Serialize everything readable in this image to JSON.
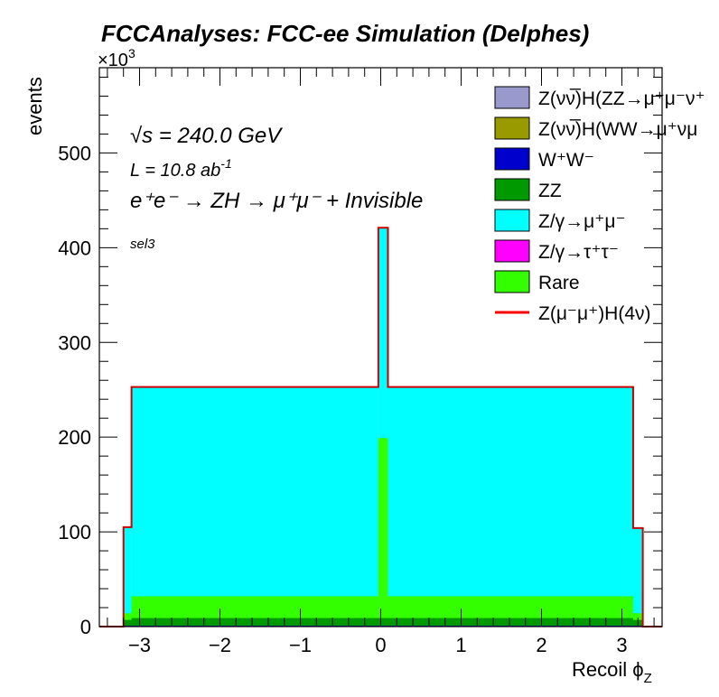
{
  "header": {
    "title": "FCCAnalyses: FCC-ee Simulation (Delphes)",
    "exponent_base": "×10",
    "exponent_power": "3"
  },
  "annotations": {
    "sqrt_s_symbol": "√s",
    "sqrt_s_value": " = 240.0 GeV",
    "lumi_prefix": "L = 10.8 ab",
    "lumi_power": "-1",
    "process": "e⁺e⁻ → ZH → μ⁺μ⁻ + Invisible",
    "selection": "sel3"
  },
  "chart_data": {
    "type": "area",
    "stacked": true,
    "xlabel": "Recoil ϕ",
    "xlabel_sub": "Z",
    "ylabel": "events",
    "y_unit_exponent": 3,
    "xlim": [
      -3.5,
      3.5
    ],
    "ylim": [
      0,
      590
    ],
    "x_ticks": [
      -3,
      -2,
      -1,
      0,
      1,
      2,
      3
    ],
    "x_tick_labels": [
      "−3",
      "−2",
      "−1",
      "0",
      "1",
      "2",
      "3"
    ],
    "y_ticks": [
      0,
      100,
      200,
      300,
      400,
      500
    ],
    "y_tick_labels": [
      "0",
      "100",
      "200",
      "300",
      "400",
      "500"
    ],
    "legend_position": "top-right",
    "legend": [
      {
        "label": "Z(νν̅)H(ZZ→μ⁺μ⁻ν⁺",
        "color": "#9999cc",
        "kind": "fill"
      },
      {
        "label": "Z(νν̅)H(WW→μ⁺νμ",
        "color": "#999900",
        "kind": "fill"
      },
      {
        "label": "W⁺W⁻",
        "color": "#0000cc",
        "kind": "fill"
      },
      {
        "label": "ZZ",
        "color": "#009900",
        "kind": "fill"
      },
      {
        "label": "Z/γ→μ⁺μ⁻",
        "color": "#00ffff",
        "kind": "fill"
      },
      {
        "label": "Z/γ→τ⁺τ⁻",
        "color": "#ff00ff",
        "kind": "fill"
      },
      {
        "label": "Rare",
        "color": "#33ff00",
        "kind": "fill"
      },
      {
        "label": "Z(μ⁻μ⁺)H(4ν)",
        "color": "#ff0000",
        "kind": "line"
      }
    ],
    "series_stack_bottom_to_top": [
      {
        "name": "Z/γ→μ⁺μ⁻",
        "color": "#00ffff",
        "bins": [
          {
            "x0": -3.2,
            "x1": -3.1,
            "top": 105
          },
          {
            "x0": -3.1,
            "x1": -0.03,
            "top": 253
          },
          {
            "x0": -0.03,
            "x1": 0.09,
            "top": 421
          },
          {
            "x0": 0.09,
            "x1": 3.14,
            "top": 253
          },
          {
            "x0": 3.14,
            "x1": 3.26,
            "top": 104
          }
        ]
      },
      {
        "name": "Rare",
        "color": "#33ff00",
        "bins": [
          {
            "x0": -3.2,
            "x1": -3.1,
            "top": 14
          },
          {
            "x0": -3.1,
            "x1": -0.03,
            "top": 32
          },
          {
            "x0": -0.03,
            "x1": 0.09,
            "top": 199
          },
          {
            "x0": 0.09,
            "x1": 3.14,
            "top": 32
          },
          {
            "x0": 3.14,
            "x1": 3.26,
            "top": 14
          }
        ]
      },
      {
        "name": "ZZ",
        "color": "#009900",
        "bins": [
          {
            "x0": -3.2,
            "x1": -3.1,
            "top": 7
          },
          {
            "x0": -3.1,
            "x1": 3.14,
            "top": 9
          },
          {
            "x0": 3.14,
            "x1": 3.26,
            "top": 7
          }
        ]
      },
      {
        "name": "W⁺W⁻",
        "color": "#0000cc",
        "bins": [
          {
            "x0": -3.2,
            "x1": 3.26,
            "top": 1
          }
        ]
      }
    ],
    "signal_line": {
      "name": "Z(μ⁻μ⁺)H(4ν)",
      "color": "#cc0000"
    }
  }
}
